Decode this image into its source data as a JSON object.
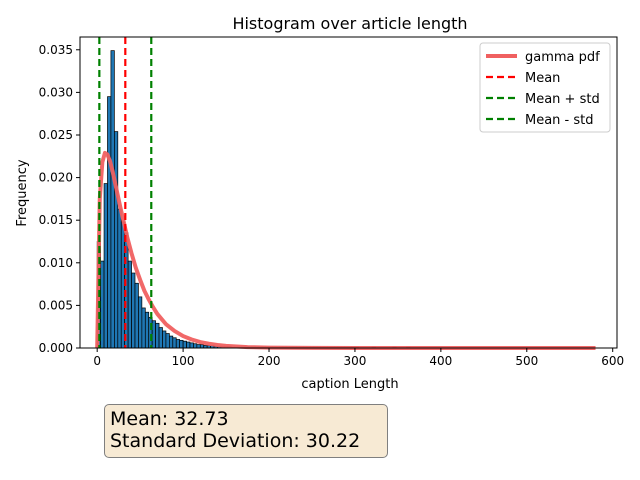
{
  "chart_data": {
    "type": "bar",
    "title": "Histogram over article length",
    "xlabel": "caption Length",
    "ylabel": "Frequency",
    "xlim": [
      -20,
      605
    ],
    "ylim": [
      0,
      0.0365
    ],
    "xticks": [
      "0",
      "100",
      "200",
      "300",
      "400",
      "500",
      "600"
    ],
    "yticks": [
      "0.000",
      "0.005",
      "0.010",
      "0.015",
      "0.020",
      "0.025",
      "0.030",
      "0.035"
    ],
    "bin_width": 4,
    "histogram": {
      "bin_starts": [
        0,
        4,
        8,
        12,
        16,
        20,
        24,
        28,
        32,
        36,
        40,
        44,
        48,
        52,
        56,
        60,
        64,
        68,
        72,
        76,
        80,
        84,
        88,
        92,
        96,
        100,
        104,
        108,
        112,
        116,
        120,
        124,
        128,
        132,
        136,
        140,
        144,
        148,
        152,
        156,
        160,
        164,
        168,
        172,
        176,
        180,
        184,
        188,
        192,
        196,
        200,
        204,
        208,
        212,
        216,
        220,
        224,
        228,
        232,
        236,
        240,
        244,
        248,
        252,
        256,
        260,
        264,
        268,
        272,
        276,
        280,
        284,
        288,
        292,
        296,
        300,
        320,
        344,
        360
      ],
      "values": [
        0.0125,
        0.0102,
        0.0193,
        0.0295,
        0.0349,
        0.0254,
        0.0163,
        0.0148,
        0.0135,
        0.0102,
        0.0088,
        0.0076,
        0.006,
        0.0047,
        0.0042,
        0.0036,
        0.0032,
        0.0029,
        0.0024,
        0.002,
        0.0017,
        0.0014,
        0.0012,
        0.001,
        0.0009,
        0.0008,
        0.0007,
        0.0006,
        0.0005,
        0.0004,
        0.0004,
        0.0003,
        0.0003,
        0.0003,
        0.0002,
        0.0002,
        0.0002,
        0.0002,
        0.0002,
        0.0001,
        0.0001,
        0.0001,
        0.0001,
        0.0001,
        0.0001,
        0.0001,
        0.0001,
        0.0001,
        0.0001,
        0.0001,
        0.0001,
        0.0001,
        0.0001,
        0.0001,
        0.0001,
        0.0001,
        0.0001,
        0.0001,
        0.0001,
        0.0001,
        0.0001,
        0.0001,
        0.0001,
        0.0001,
        0.0001,
        0.0001,
        0.0001,
        0.0001,
        0.0001,
        0.0001,
        0.0001,
        0.0001,
        0.0001,
        0.0001,
        0.0001,
        0.0001,
        0.0001,
        0.0001,
        0.0001
      ]
    },
    "series": [
      {
        "name": "gamma pdf",
        "type": "line",
        "color": "#f06060",
        "x": [
          0,
          3,
          6,
          9,
          12,
          15,
          18,
          21,
          24,
          27,
          30,
          35,
          40,
          45,
          50,
          55,
          60,
          65,
          70,
          75,
          80,
          90,
          100,
          110,
          120,
          130,
          140,
          150,
          175,
          200,
          250,
          300,
          350,
          400,
          450,
          500,
          550,
          580
        ],
        "y": [
          0,
          0.0175,
          0.0218,
          0.0229,
          0.0227,
          0.0219,
          0.0207,
          0.0193,
          0.0179,
          0.0165,
          0.0152,
          0.013,
          0.0111,
          0.0094,
          0.008,
          0.0067,
          0.0057,
          0.0048,
          0.004,
          0.0034,
          0.0028,
          0.002,
          0.0014,
          0.001,
          0.0007,
          0.0005,
          0.00035,
          0.00025,
          0.0001,
          5e-05,
          1e-05,
          0,
          0,
          0,
          0,
          0,
          0,
          0
        ]
      },
      {
        "name": "Mean",
        "type": "vline",
        "x": 32.73,
        "color": "#ff0000"
      },
      {
        "name": "Mean + std",
        "type": "vline",
        "x": 62.95,
        "color": "#008000"
      },
      {
        "name": "Mean - std",
        "type": "vline",
        "x": 2.51,
        "color": "#008000"
      }
    ],
    "grid": false,
    "legend_position": "top-right"
  },
  "stats": {
    "mean_text": "Mean: 32.73",
    "std_text": "Standard Deviation: 30.22"
  }
}
